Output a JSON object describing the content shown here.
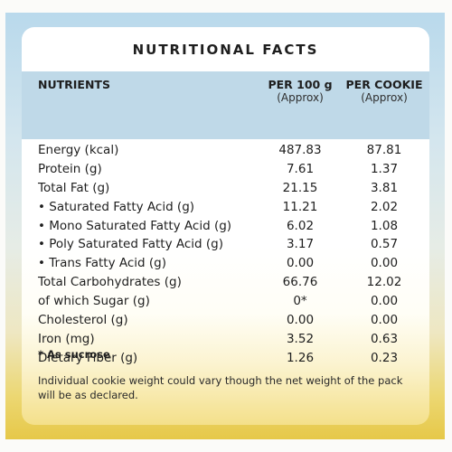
{
  "title": "NUTRITIONAL FACTS",
  "header": {
    "nutrients": "NUTRIENTS",
    "per100_label": "PER 100 g",
    "per100_sub": "(Approx)",
    "percookie_label": "PER COOKIE",
    "percookie_sub": "(Approx)"
  },
  "rows": [
    {
      "name": "Energy (kcal)",
      "per100": "487.83",
      "percookie": "87.81"
    },
    {
      "name": "Protein (g)",
      "per100": "7.61",
      "percookie": "1.37"
    },
    {
      "name": "Total Fat (g)",
      "per100": "21.15",
      "percookie": "3.81"
    },
    {
      "name": "• Saturated Fatty Acid (g)",
      "per100": "11.21",
      "percookie": "2.02"
    },
    {
      "name": "• Mono Saturated Fatty Acid  (g)",
      "per100": "6.02",
      "percookie": "1.08"
    },
    {
      "name": "• Poly Saturated Fatty Acid (g)",
      "per100": "3.17",
      "percookie": "0.57"
    },
    {
      "name": "• Trans Fatty Acid (g)",
      "per100": "0.00",
      "percookie": "0.00"
    },
    {
      "name": "Total Carbohydrates (g)",
      "per100": "66.76",
      "percookie": "12.02"
    },
    {
      "name": "of which Sugar (g)",
      "per100": "0*",
      "percookie": "0.00"
    },
    {
      "name": "Cholesterol (g)",
      "per100": "0.00",
      "percookie": "0.00"
    },
    {
      "name": "Iron (mg)",
      "per100": "3.52",
      "percookie": "0.63"
    },
    {
      "name": "Dietary Fiber (g)",
      "per100": "1.26",
      "percookie": "0.23"
    }
  ],
  "footnote": "* As sucrose",
  "disclaimer": "Individual cookie weight could vary though the net weight of the pack will be as declared."
}
